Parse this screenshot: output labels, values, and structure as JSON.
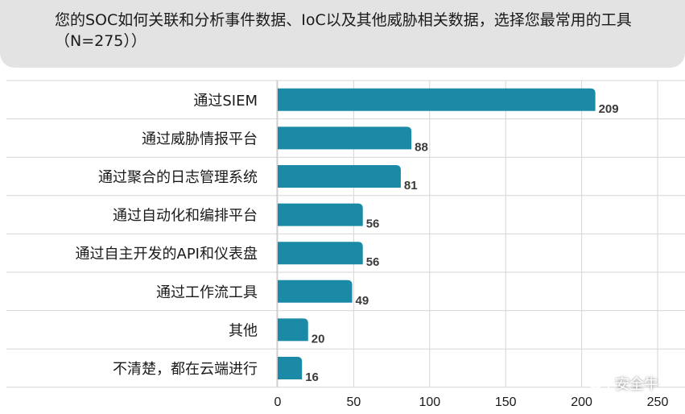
{
  "header": {
    "title": "您的SOC如何关联和分析事件数据、IoC以及其他威胁相关数据，选择您最常用的工具（N=275））"
  },
  "chart_data": {
    "type": "bar",
    "orientation": "horizontal",
    "categories": [
      "通过SIEM",
      "通过威胁情报平台",
      "通过聚合的日志管理系统",
      "通过自动化和编排平台",
      "通过自主开发的API和仪表盘",
      "通过工作流工具",
      "其他",
      "不清楚，都在云端进行"
    ],
    "values": [
      209,
      88,
      81,
      56,
      56,
      49,
      20,
      16
    ],
    "xlim": [
      0,
      250
    ],
    "xticks": [
      "0",
      "50",
      "100",
      "150",
      "200",
      "250"
    ],
    "grid": true,
    "bar_color": "#1b8aa6",
    "title": "",
    "xlabel": "",
    "ylabel": ""
  },
  "watermark": {
    "text": "安全牛"
  }
}
